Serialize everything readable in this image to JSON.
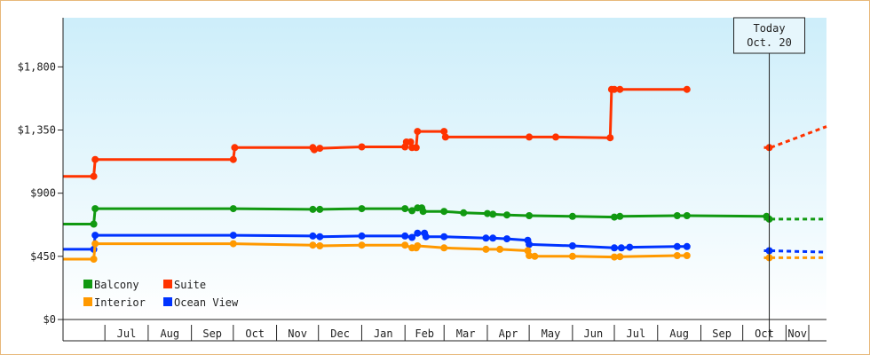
{
  "chart_data": {
    "type": "line",
    "x_type": "date",
    "xlim": [
      "2013-06-01",
      "2014-11-30"
    ],
    "ylim": [
      0,
      2150
    ],
    "y_ticks": [
      0,
      450,
      900,
      1350,
      1800
    ],
    "y_tick_labels": [
      "$0",
      "$450",
      "$900",
      "$1,350",
      "$1,800"
    ],
    "month_ticks": [
      "2013-07-01",
      "2013-08-01",
      "2013-09-01",
      "2013-10-01",
      "2013-11-01",
      "2013-12-01",
      "2014-01-01",
      "2014-02-01",
      "2014-03-01",
      "2014-04-01",
      "2014-05-01",
      "2014-06-01",
      "2014-07-01",
      "2014-08-01",
      "2014-09-01",
      "2014-10-01",
      "2014-11-01"
    ],
    "month_labels": [
      "Jul",
      "Aug",
      "Sep",
      "Oct",
      "Nov",
      "Dec",
      "Jan",
      "Feb",
      "Mar",
      "Apr",
      "May",
      "Jun",
      "Jul",
      "Aug",
      "Sep",
      "Oct",
      "Nov"
    ],
    "today": {
      "date": "2014-10-20",
      "label_line1": "Today",
      "label_line2": "Oct. 20"
    },
    "projection_end": "2014-11-30",
    "series": [
      {
        "name": "Suite",
        "color": "#ff3300",
        "points": [
          [
            "2013-06-01",
            1020
          ],
          [
            "2013-06-23",
            1020
          ],
          [
            "2013-06-24",
            1140
          ],
          [
            "2013-10-01",
            1140
          ],
          [
            "2013-10-02",
            1225
          ],
          [
            "2013-11-27",
            1225
          ],
          [
            "2013-11-28",
            1210
          ],
          [
            "2013-12-02",
            1220
          ],
          [
            "2014-01-01",
            1230
          ],
          [
            "2014-02-01",
            1230
          ],
          [
            "2014-02-02",
            1265
          ],
          [
            "2014-02-05",
            1265
          ],
          [
            "2014-02-06",
            1225
          ],
          [
            "2014-02-09",
            1225
          ],
          [
            "2014-02-10",
            1340
          ],
          [
            "2014-03-01",
            1340
          ],
          [
            "2014-03-02",
            1300
          ],
          [
            "2014-05-01",
            1300
          ],
          [
            "2014-05-20",
            1300
          ],
          [
            "2014-06-28",
            1295
          ],
          [
            "2014-06-29",
            1640
          ],
          [
            "2014-07-01",
            1640
          ],
          [
            "2014-07-05",
            1640
          ],
          [
            "2014-08-22",
            1640
          ]
        ],
        "last_point": [
          "2014-10-20",
          1225
        ],
        "projection": [
          [
            "2014-10-21",
            1225
          ],
          [
            "2014-11-30",
            1375
          ]
        ]
      },
      {
        "name": "Balcony",
        "color": "#119911",
        "points": [
          [
            "2013-06-01",
            680
          ],
          [
            "2013-06-23",
            680
          ],
          [
            "2013-06-24",
            790
          ],
          [
            "2013-10-01",
            790
          ],
          [
            "2013-11-27",
            785
          ],
          [
            "2013-12-02",
            785
          ],
          [
            "2014-01-01",
            790
          ],
          [
            "2014-02-01",
            790
          ],
          [
            "2014-02-06",
            775
          ],
          [
            "2014-02-10",
            795
          ],
          [
            "2014-02-13",
            795
          ],
          [
            "2014-02-14",
            770
          ],
          [
            "2014-03-01",
            770
          ],
          [
            "2014-03-15",
            760
          ],
          [
            "2014-04-01",
            755
          ],
          [
            "2014-04-05",
            750
          ],
          [
            "2014-04-15",
            745
          ],
          [
            "2014-05-01",
            740
          ],
          [
            "2014-06-01",
            735
          ],
          [
            "2014-07-01",
            730
          ],
          [
            "2014-07-05",
            735
          ],
          [
            "2014-08-15",
            740
          ],
          [
            "2014-08-22",
            740
          ],
          [
            "2014-10-18",
            735
          ]
        ],
        "last_point": [
          "2014-10-20",
          715
        ],
        "projection": [
          [
            "2014-10-21",
            715
          ],
          [
            "2014-11-30",
            715
          ]
        ]
      },
      {
        "name": "Ocean View",
        "color": "#0033ff",
        "points": [
          [
            "2013-06-01",
            500
          ],
          [
            "2013-06-23",
            500
          ],
          [
            "2013-06-24",
            600
          ],
          [
            "2013-10-01",
            600
          ],
          [
            "2013-11-27",
            595
          ],
          [
            "2013-12-02",
            590
          ],
          [
            "2014-01-01",
            595
          ],
          [
            "2014-02-01",
            595
          ],
          [
            "2014-02-06",
            585
          ],
          [
            "2014-02-10",
            615
          ],
          [
            "2014-02-15",
            615
          ],
          [
            "2014-02-16",
            590
          ],
          [
            "2014-03-01",
            590
          ],
          [
            "2014-03-31",
            580
          ],
          [
            "2014-04-05",
            580
          ],
          [
            "2014-04-15",
            575
          ],
          [
            "2014-04-30",
            565
          ],
          [
            "2014-05-01",
            535
          ],
          [
            "2014-06-01",
            525
          ],
          [
            "2014-07-01",
            510
          ],
          [
            "2014-07-06",
            510
          ],
          [
            "2014-07-12",
            515
          ],
          [
            "2014-08-15",
            520
          ],
          [
            "2014-08-22",
            520
          ]
        ],
        "last_point": [
          "2014-10-20",
          490
        ],
        "projection": [
          [
            "2014-10-21",
            490
          ],
          [
            "2014-11-30",
            480
          ]
        ]
      },
      {
        "name": "Interior",
        "color": "#ff9900",
        "points": [
          [
            "2013-06-01",
            430
          ],
          [
            "2013-06-23",
            430
          ],
          [
            "2013-06-24",
            540
          ],
          [
            "2013-10-01",
            540
          ],
          [
            "2013-11-27",
            530
          ],
          [
            "2013-12-02",
            525
          ],
          [
            "2014-01-01",
            530
          ],
          [
            "2014-02-01",
            530
          ],
          [
            "2014-02-06",
            510
          ],
          [
            "2014-02-09",
            510
          ],
          [
            "2014-02-10",
            525
          ],
          [
            "2014-03-01",
            510
          ],
          [
            "2014-03-31",
            500
          ],
          [
            "2014-04-10",
            500
          ],
          [
            "2014-04-30",
            490
          ],
          [
            "2014-05-01",
            455
          ],
          [
            "2014-05-05",
            450
          ],
          [
            "2014-06-01",
            450
          ],
          [
            "2014-07-01",
            445
          ],
          [
            "2014-07-05",
            448
          ],
          [
            "2014-08-15",
            455
          ],
          [
            "2014-08-22",
            455
          ]
        ],
        "last_point": [
          "2014-10-20",
          440
        ],
        "projection": [
          [
            "2014-10-21",
            440
          ],
          [
            "2014-11-30",
            440
          ]
        ]
      }
    ],
    "legend": {
      "position": "bottom-left",
      "entries": [
        {
          "name": "Balcony",
          "color": "#119911"
        },
        {
          "name": "Suite",
          "color": "#ff3300"
        },
        {
          "name": "Interior",
          "color": "#ff9900"
        },
        {
          "name": "Ocean View",
          "color": "#0033ff"
        }
      ]
    },
    "colors": {
      "plot_bg_top": "#cdeefa",
      "plot_bg_bottom": "#ffffff",
      "frame_border": "#e8b87a"
    },
    "grid": false
  }
}
